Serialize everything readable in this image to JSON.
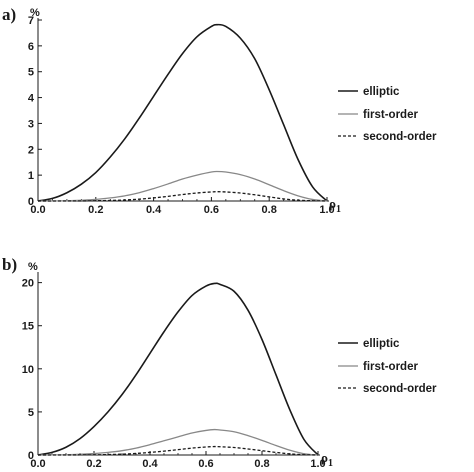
{
  "figure": {
    "panels": [
      {
        "label": "a)",
        "unit": "%",
        "xlabel": "ρ",
        "xlabel_sub": "1",
        "legend": [
          "elliptic",
          "first-order",
          "second-order"
        ]
      },
      {
        "label": "b)",
        "unit": "%",
        "xlabel": "ρ",
        "xlabel_sub": "1",
        "legend": [
          "elliptic",
          "first-order",
          "second-order"
        ]
      }
    ]
  },
  "chart_data": [
    {
      "type": "line",
      "title": "",
      "xlabel": "ρ1",
      "ylabel": "%",
      "xlim": [
        0,
        1.0
      ],
      "ylim": [
        0,
        7
      ],
      "xticks": [
        "0.0",
        "0.2",
        "0.4",
        "0.6",
        "0.8",
        "1.0"
      ],
      "yticks": [
        "0",
        "1",
        "2",
        "3",
        "4",
        "5",
        "6",
        "7"
      ],
      "legend_position": "right",
      "x": [
        0.0,
        0.05,
        0.1,
        0.15,
        0.2,
        0.25,
        0.3,
        0.35,
        0.4,
        0.45,
        0.5,
        0.55,
        0.6,
        0.62,
        0.65,
        0.7,
        0.75,
        0.8,
        0.85,
        0.9,
        0.95,
        1.0
      ],
      "series": [
        {
          "name": "elliptic",
          "style": "solid",
          "color": "#1a1a1a",
          "values": [
            0.0,
            0.1,
            0.32,
            0.65,
            1.1,
            1.7,
            2.4,
            3.2,
            4.05,
            4.9,
            5.7,
            6.35,
            6.75,
            6.82,
            6.75,
            6.3,
            5.5,
            4.3,
            2.95,
            1.6,
            0.55,
            0.0
          ]
        },
        {
          "name": "first-order",
          "style": "solid",
          "color": "#888888",
          "values": [
            0.0,
            0.0,
            0.01,
            0.03,
            0.06,
            0.12,
            0.2,
            0.32,
            0.48,
            0.66,
            0.85,
            1.0,
            1.12,
            1.14,
            1.12,
            1.02,
            0.85,
            0.63,
            0.4,
            0.2,
            0.06,
            0.0
          ]
        },
        {
          "name": "second-order",
          "style": "dashed",
          "color": "#1a1a1a",
          "values": [
            0.0,
            0.0,
            0.0,
            0.0,
            0.01,
            0.02,
            0.04,
            0.07,
            0.12,
            0.18,
            0.25,
            0.31,
            0.35,
            0.36,
            0.35,
            0.31,
            0.24,
            0.16,
            0.08,
            0.03,
            0.01,
            0.0
          ]
        }
      ]
    },
    {
      "type": "line",
      "title": "",
      "xlabel": "ρ1",
      "ylabel": "%",
      "xlim": [
        0,
        1.0
      ],
      "ylim": [
        0,
        21
      ],
      "xticks": [
        "0.0",
        "0.2",
        "0.4",
        "0.6",
        "0.8",
        "1.0"
      ],
      "yticks": [
        "0",
        "5",
        "10",
        "15",
        "20"
      ],
      "legend_position": "right",
      "x": [
        0.0,
        0.05,
        0.1,
        0.15,
        0.2,
        0.25,
        0.3,
        0.35,
        0.4,
        0.45,
        0.5,
        0.55,
        0.6,
        0.63,
        0.65,
        0.7,
        0.75,
        0.8,
        0.85,
        0.9,
        0.95,
        1.0
      ],
      "series": [
        {
          "name": "elliptic",
          "style": "solid",
          "color": "#1a1a1a",
          "values": [
            0.0,
            0.3,
            0.9,
            1.9,
            3.3,
            5.0,
            7.0,
            9.3,
            11.8,
            14.3,
            16.6,
            18.5,
            19.6,
            19.9,
            19.8,
            19.0,
            16.8,
            13.4,
            9.3,
            5.2,
            1.8,
            0.0
          ]
        },
        {
          "name": "first-order",
          "style": "solid",
          "color": "#888888",
          "values": [
            0.0,
            0.01,
            0.03,
            0.08,
            0.17,
            0.3,
            0.5,
            0.8,
            1.2,
            1.65,
            2.1,
            2.55,
            2.85,
            2.95,
            2.9,
            2.7,
            2.25,
            1.7,
            1.1,
            0.55,
            0.15,
            0.0
          ]
        },
        {
          "name": "second-order",
          "style": "dashed",
          "color": "#1a1a1a",
          "values": [
            0.0,
            0.0,
            0.0,
            0.01,
            0.02,
            0.05,
            0.1,
            0.18,
            0.3,
            0.45,
            0.62,
            0.8,
            0.93,
            0.98,
            0.96,
            0.87,
            0.7,
            0.5,
            0.3,
            0.13,
            0.03,
            0.0
          ]
        }
      ]
    }
  ]
}
